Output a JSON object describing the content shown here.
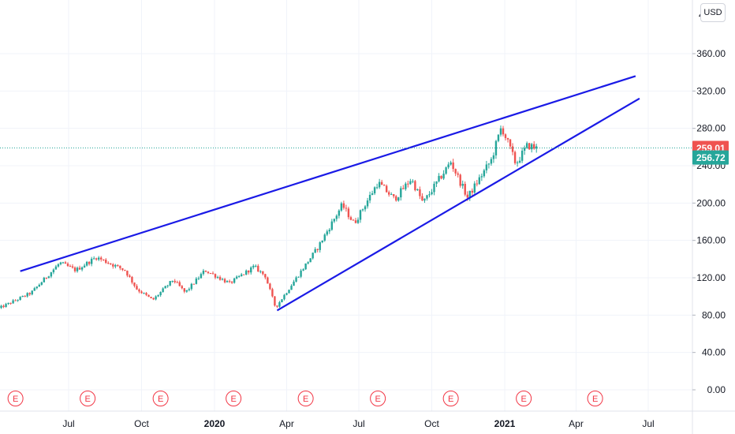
{
  "currency": "USD",
  "chart_data": {
    "type": "candlestick",
    "y_axis": {
      "range": [
        -8,
        405
      ],
      "ticks": [
        "0.00",
        "40.00",
        "80.00",
        "120.00",
        "160.00",
        "200.00",
        "240.00",
        "280.00",
        "320.00",
        "360.00"
      ],
      "tick_values": [
        0,
        40,
        80,
        120,
        160,
        200,
        240,
        280,
        320,
        360
      ],
      "top_partial_label": "4"
    },
    "x_axis": {
      "labels": [
        {
          "text": "Jul",
          "date": "2019-07-01"
        },
        {
          "text": "Oct",
          "date": "2019-10-01"
        },
        {
          "text": "2020",
          "date": "2020-01-01",
          "bold": true
        },
        {
          "text": "Apr",
          "date": "2020-04-01"
        },
        {
          "text": "Jul",
          "date": "2020-07-01"
        },
        {
          "text": "Oct",
          "date": "2020-10-01"
        },
        {
          "text": "2021",
          "date": "2021-01-01",
          "bold": true
        },
        {
          "text": "Apr",
          "date": "2021-04-01"
        },
        {
          "text": "Jul",
          "date": "2021-07-01"
        }
      ]
    },
    "price_anchors": [
      {
        "date": "2019-04-01",
        "close": 86
      },
      {
        "date": "2019-05-15",
        "close": 104
      },
      {
        "date": "2019-06-20",
        "close": 136
      },
      {
        "date": "2019-07-10",
        "close": 128
      },
      {
        "date": "2019-08-05",
        "close": 142
      },
      {
        "date": "2019-09-10",
        "close": 128
      },
      {
        "date": "2019-09-25",
        "close": 108
      },
      {
        "date": "2019-10-15",
        "close": 96
      },
      {
        "date": "2019-11-10",
        "close": 118
      },
      {
        "date": "2019-11-25",
        "close": 104
      },
      {
        "date": "2019-12-20",
        "close": 128
      },
      {
        "date": "2020-01-20",
        "close": 114
      },
      {
        "date": "2020-02-20",
        "close": 132
      },
      {
        "date": "2020-03-05",
        "close": 122
      },
      {
        "date": "2020-03-18",
        "close": 88
      },
      {
        "date": "2020-04-15",
        "close": 122
      },
      {
        "date": "2020-05-10",
        "close": 152
      },
      {
        "date": "2020-06-10",
        "close": 198
      },
      {
        "date": "2020-06-25",
        "close": 178
      },
      {
        "date": "2020-07-25",
        "close": 222
      },
      {
        "date": "2020-08-15",
        "close": 204
      },
      {
        "date": "2020-09-05",
        "close": 226
      },
      {
        "date": "2020-09-20",
        "close": 200
      },
      {
        "date": "2020-10-25",
        "close": 244
      },
      {
        "date": "2020-11-15",
        "close": 206
      },
      {
        "date": "2020-12-15",
        "close": 246
      },
      {
        "date": "2020-12-28",
        "close": 282
      },
      {
        "date": "2021-01-15",
        "close": 242
      },
      {
        "date": "2021-01-30",
        "close": 262
      },
      {
        "date": "2021-02-12",
        "close": 258
      }
    ],
    "trendlines": [
      {
        "name": "upper",
        "from": {
          "date": "2019-05-01",
          "value": 127
        },
        "to": {
          "date": "2021-06-15",
          "value": 336
        }
      },
      {
        "name": "lower",
        "from": {
          "date": "2020-03-20",
          "value": 85
        },
        "to": {
          "date": "2021-06-20",
          "value": 312
        }
      }
    ],
    "earnings_events": [
      "2019-04-25",
      "2019-07-25",
      "2019-10-25",
      "2020-01-25",
      "2020-04-25",
      "2020-07-25",
      "2020-10-25",
      "2021-01-25",
      "2021-04-25"
    ],
    "earnings_label": "E",
    "price_line": {
      "value": 259.01,
      "label": "259.01"
    },
    "last_price": {
      "value": 256.72,
      "label": "256.72"
    },
    "colors": {
      "up": "#26a69a",
      "down": "#ef5350",
      "trendline": "#1a1ae6",
      "price_line": "#26a69a",
      "price_tag": "#ef5350",
      "last_tag": "#26a69a",
      "earnings": "#f23645",
      "grid": "#f0f3fa"
    },
    "grid": true
  }
}
